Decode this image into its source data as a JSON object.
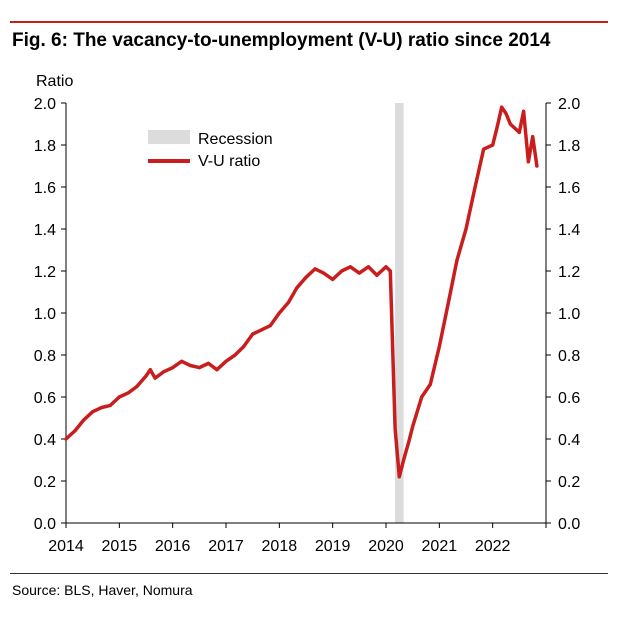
{
  "figure": {
    "title": "Fig. 6: The vacancy-to-unemployment (V-U) ratio since 2014",
    "source": "Source: BLS, Haver, Nomura"
  },
  "colors": {
    "series": "#c81e1e",
    "recession": "#dcdcdc",
    "rule": "#c81e1e"
  },
  "chart_data": {
    "type": "line",
    "title": "Fig. 6: The vacancy-to-unemployment (V-U) ratio since 2014",
    "ylabel": "Ratio",
    "xlabel": "",
    "xlim": [
      2014,
      2023
    ],
    "ylim": [
      0,
      2.0
    ],
    "x_ticks": [
      "2014",
      "2015",
      "2016",
      "2017",
      "2018",
      "2019",
      "2020",
      "2021",
      "2022"
    ],
    "y_ticks": [
      "0.0",
      "0.2",
      "0.4",
      "0.6",
      "0.8",
      "1.0",
      "1.2",
      "1.4",
      "1.6",
      "1.8",
      "2.0"
    ],
    "legend": {
      "placement": "top-left",
      "entries": [
        "Recession",
        "V-U ratio"
      ]
    },
    "grid": false,
    "recession": {
      "name": "Recession",
      "start": 2020.17,
      "end": 2020.33
    },
    "series": [
      {
        "name": "V-U ratio",
        "x": [
          2014.0,
          2014.17,
          2014.33,
          2014.5,
          2014.67,
          2014.83,
          2015.0,
          2015.17,
          2015.33,
          2015.5,
          2015.58,
          2015.67,
          2015.83,
          2016.0,
          2016.17,
          2016.33,
          2016.5,
          2016.67,
          2016.83,
          2017.0,
          2017.17,
          2017.33,
          2017.5,
          2017.67,
          2017.83,
          2018.0,
          2018.17,
          2018.33,
          2018.5,
          2018.67,
          2018.83,
          2019.0,
          2019.17,
          2019.33,
          2019.5,
          2019.67,
          2019.83,
          2020.0,
          2020.08,
          2020.17,
          2020.25,
          2020.33,
          2020.42,
          2020.5,
          2020.67,
          2020.83,
          2021.0,
          2021.17,
          2021.33,
          2021.5,
          2021.67,
          2021.83,
          2022.0,
          2022.08,
          2022.17,
          2022.25,
          2022.33,
          2022.5,
          2022.58,
          2022.67,
          2022.75,
          2022.83
        ],
        "values": [
          0.4,
          0.44,
          0.49,
          0.53,
          0.55,
          0.56,
          0.6,
          0.62,
          0.65,
          0.7,
          0.73,
          0.69,
          0.72,
          0.74,
          0.77,
          0.75,
          0.74,
          0.76,
          0.73,
          0.77,
          0.8,
          0.84,
          0.9,
          0.92,
          0.94,
          1.0,
          1.05,
          1.12,
          1.17,
          1.21,
          1.19,
          1.16,
          1.2,
          1.22,
          1.19,
          1.22,
          1.18,
          1.22,
          1.2,
          0.45,
          0.22,
          0.3,
          0.38,
          0.46,
          0.6,
          0.66,
          0.84,
          1.05,
          1.25,
          1.4,
          1.6,
          1.78,
          1.8,
          1.88,
          1.98,
          1.95,
          1.9,
          1.86,
          1.96,
          1.72,
          1.84,
          1.7
        ]
      }
    ]
  }
}
